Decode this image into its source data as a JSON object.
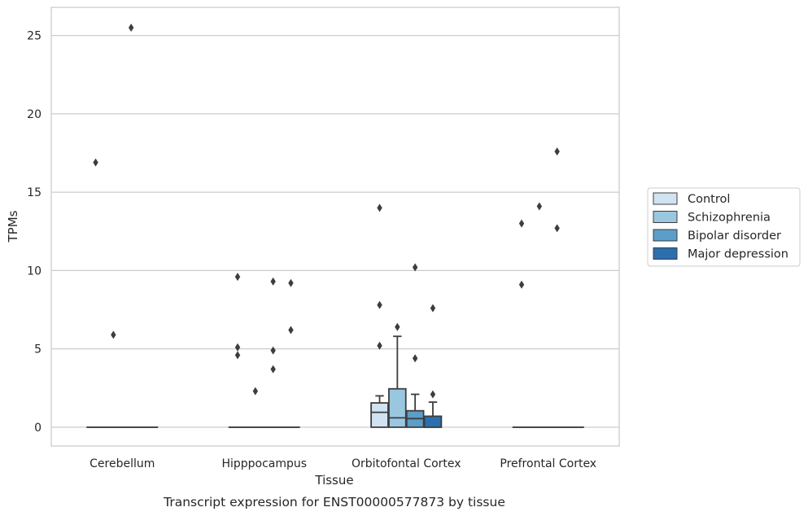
{
  "chart_data": {
    "type": "box",
    "title": "",
    "caption": "Transcript expression for ENST00000577873 by tissue",
    "xlabel": "Tissue",
    "ylabel": "TPMs",
    "ylim": [
      -1.2,
      26.8
    ],
    "yticks": [
      0,
      5,
      10,
      15,
      20,
      25
    ],
    "grid": "horizontal",
    "legend_position": "right",
    "categories": [
      "Cerebellum",
      "Hipppocampus",
      "Orbitofontal Cortex",
      "Prefrontal Cortex"
    ],
    "series": [
      {
        "name": "Control",
        "color": "#d1e2f2",
        "boxes": [
          {
            "q1": 0,
            "median": 0,
            "q3": 0,
            "whisker_low": 0,
            "whisker_high": 0,
            "outliers": [
              16.9
            ]
          },
          {
            "q1": 0,
            "median": 0,
            "q3": 0,
            "whisker_low": 0,
            "whisker_high": 0,
            "outliers": [
              9.6,
              5.1,
              4.6
            ]
          },
          {
            "q1": 0,
            "median": 0.95,
            "q3": 1.55,
            "whisker_low": 0,
            "whisker_high": 2.0,
            "outliers": [
              14.0,
              7.8,
              5.2
            ]
          },
          {
            "q1": 0,
            "median": 0,
            "q3": 0,
            "whisker_low": 0,
            "whisker_high": 0,
            "outliers": [
              13.0,
              9.1
            ]
          }
        ]
      },
      {
        "name": "Schizophrenia",
        "color": "#9ac7e0",
        "boxes": [
          {
            "q1": 0,
            "median": 0,
            "q3": 0,
            "whisker_low": 0,
            "whisker_high": 0,
            "outliers": [
              5.9
            ]
          },
          {
            "q1": 0,
            "median": 0,
            "q3": 0,
            "whisker_low": 0,
            "whisker_high": 0,
            "outliers": [
              2.3
            ]
          },
          {
            "q1": 0,
            "median": 0.6,
            "q3": 2.45,
            "whisker_low": 0,
            "whisker_high": 5.8,
            "outliers": [
              6.4
            ]
          },
          {
            "q1": 0,
            "median": 0,
            "q3": 0,
            "whisker_low": 0,
            "whisker_high": 0,
            "outliers": [
              14.1
            ]
          }
        ]
      },
      {
        "name": "Bipolar disorder",
        "color": "#5b9ec9",
        "boxes": [
          {
            "q1": 0,
            "median": 0,
            "q3": 0,
            "whisker_low": 0,
            "whisker_high": 0,
            "outliers": [
              25.5
            ]
          },
          {
            "q1": 0,
            "median": 0,
            "q3": 0,
            "whisker_low": 0,
            "whisker_high": 0,
            "outliers": [
              9.3,
              4.9,
              3.7
            ]
          },
          {
            "q1": 0,
            "median": 0.55,
            "q3": 1.05,
            "whisker_low": 0,
            "whisker_high": 2.1,
            "outliers": [
              10.2,
              4.4
            ]
          },
          {
            "q1": 0,
            "median": 0,
            "q3": 0,
            "whisker_low": 0,
            "whisker_high": 0,
            "outliers": [
              17.6,
              12.7
            ]
          }
        ]
      },
      {
        "name": "Major depression",
        "color": "#2b6fae",
        "boxes": [
          {
            "q1": 0,
            "median": 0,
            "q3": 0,
            "whisker_low": 0,
            "whisker_high": 0,
            "outliers": []
          },
          {
            "q1": 0,
            "median": 0,
            "q3": 0,
            "whisker_low": 0,
            "whisker_high": 0,
            "outliers": [
              9.2,
              6.2
            ]
          },
          {
            "q1": 0,
            "median": 0,
            "q3": 0.7,
            "whisker_low": 0,
            "whisker_high": 1.6,
            "outliers": [
              7.6,
              2.1
            ]
          },
          {
            "q1": 0,
            "median": 0,
            "q3": 0,
            "whisker_low": 0,
            "whisker_high": 0,
            "outliers": []
          }
        ]
      }
    ]
  },
  "colors": {
    "grid": "#cccccc",
    "frame": "#cccccc",
    "box_edge": "#3d3d3d",
    "outlier": "#3d3d3d"
  }
}
